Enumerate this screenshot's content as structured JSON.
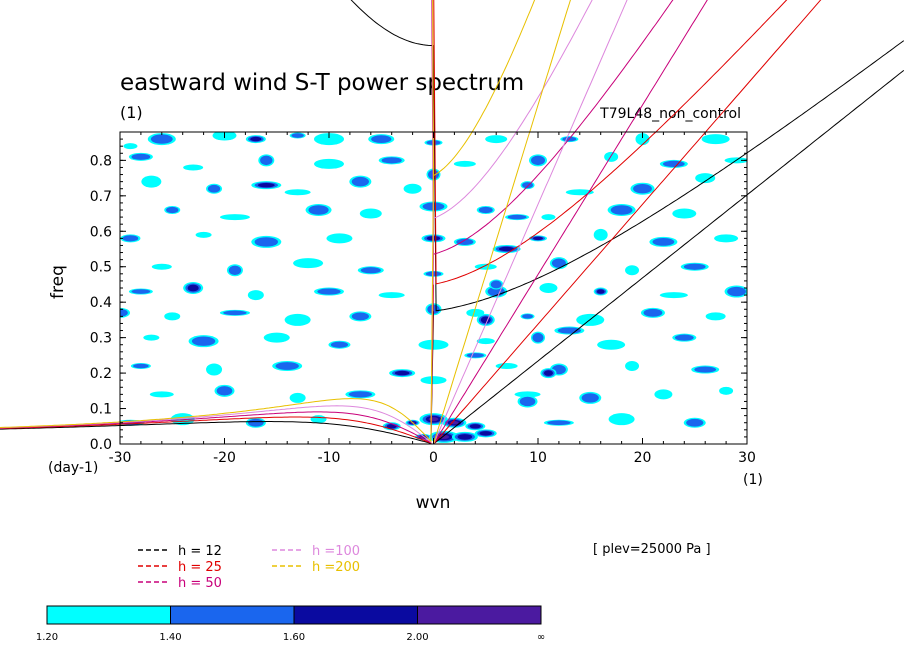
{
  "chart_data": {
    "type": "heatmap",
    "title": "eastward wind S-T power spectrum",
    "units_left": "(1)",
    "run_label": "T79L48_non_control",
    "xlabel": "wvn",
    "ylabel": "freq",
    "x_units": "(1)",
    "y_units": "(day-1)",
    "xlim": [
      -30,
      30
    ],
    "ylim": [
      0,
      0.88
    ],
    "xticks": [
      "-30",
      "-20",
      "-10",
      "0",
      "10",
      "20",
      "30"
    ],
    "xtick_values": [
      -30,
      -20,
      -10,
      0,
      10,
      20,
      30
    ],
    "yticks": [
      "0.0",
      "0.1",
      "0.2",
      "0.3",
      "0.4",
      "0.5",
      "0.6",
      "0.7",
      "0.8"
    ],
    "ytick_values": [
      0,
      0.1,
      0.2,
      0.3,
      0.4,
      0.5,
      0.6,
      0.7,
      0.8
    ],
    "plev_label": "[ plev=25000 Pa ]",
    "dispersion_curves": [
      {
        "name": "h = 12",
        "h": 12,
        "color": "#000000"
      },
      {
        "name": "h = 25",
        "h": 25,
        "color": "#e00000"
      },
      {
        "name": "h = 50",
        "h": 50,
        "color": "#c8007a"
      },
      {
        "name": "h =100",
        "h": 100,
        "color": "#dd88dd"
      },
      {
        "name": "h =200",
        "h": 200,
        "color": "#e8c000"
      }
    ],
    "colorbar": {
      "levels": [
        "1.20",
        "1.40",
        "1.60",
        "2.00",
        "∞"
      ],
      "colors": [
        "#00ffff",
        "#1a66ee",
        "#0a0aa0",
        "#4b1aa0"
      ]
    },
    "blobs": [
      {
        "x": -29,
        "y": 0.84,
        "l": 1
      },
      {
        "x": -26,
        "y": 0.86,
        "l": 2
      },
      {
        "x": -20,
        "y": 0.87,
        "l": 1
      },
      {
        "x": -17,
        "y": 0.86,
        "l": 3
      },
      {
        "x": -13,
        "y": 0.87,
        "l": 2
      },
      {
        "x": -10,
        "y": 0.86,
        "l": 1
      },
      {
        "x": -5,
        "y": 0.86,
        "l": 2
      },
      {
        "x": 6,
        "y": 0.86,
        "l": 1
      },
      {
        "x": 13,
        "y": 0.86,
        "l": 2
      },
      {
        "x": 20,
        "y": 0.86,
        "l": 1
      },
      {
        "x": 27,
        "y": 0.86,
        "l": 1
      },
      {
        "x": -28,
        "y": 0.81,
        "l": 2
      },
      {
        "x": -23,
        "y": 0.78,
        "l": 1
      },
      {
        "x": -16,
        "y": 0.8,
        "l": 2
      },
      {
        "x": -10,
        "y": 0.79,
        "l": 1
      },
      {
        "x": -4,
        "y": 0.8,
        "l": 2
      },
      {
        "x": 3,
        "y": 0.79,
        "l": 1
      },
      {
        "x": 10,
        "y": 0.8,
        "l": 2
      },
      {
        "x": 17,
        "y": 0.81,
        "l": 1
      },
      {
        "x": 23,
        "y": 0.79,
        "l": 2
      },
      {
        "x": 29,
        "y": 0.8,
        "l": 1
      },
      {
        "x": -27,
        "y": 0.74,
        "l": 1
      },
      {
        "x": -21,
        "y": 0.72,
        "l": 2
      },
      {
        "x": -16,
        "y": 0.73,
        "l": 3
      },
      {
        "x": -13,
        "y": 0.71,
        "l": 1
      },
      {
        "x": -7,
        "y": 0.74,
        "l": 2
      },
      {
        "x": -2,
        "y": 0.72,
        "l": 1
      },
      {
        "x": 9,
        "y": 0.73,
        "l": 2
      },
      {
        "x": 14,
        "y": 0.71,
        "l": 1
      },
      {
        "x": 20,
        "y": 0.72,
        "l": 2
      },
      {
        "x": 26,
        "y": 0.75,
        "l": 1
      },
      {
        "x": -25,
        "y": 0.66,
        "l": 2
      },
      {
        "x": -19,
        "y": 0.64,
        "l": 1
      },
      {
        "x": -11,
        "y": 0.66,
        "l": 2
      },
      {
        "x": -6,
        "y": 0.65,
        "l": 1
      },
      {
        "x": 5,
        "y": 0.66,
        "l": 2
      },
      {
        "x": 11,
        "y": 0.64,
        "l": 1
      },
      {
        "x": 18,
        "y": 0.66,
        "l": 2
      },
      {
        "x": 24,
        "y": 0.65,
        "l": 1
      },
      {
        "x": -29,
        "y": 0.58,
        "l": 2
      },
      {
        "x": -22,
        "y": 0.59,
        "l": 1
      },
      {
        "x": -16,
        "y": 0.57,
        "l": 2
      },
      {
        "x": -9,
        "y": 0.58,
        "l": 1
      },
      {
        "x": 3,
        "y": 0.57,
        "l": 2
      },
      {
        "x": 10,
        "y": 0.58,
        "l": 3
      },
      {
        "x": 16,
        "y": 0.59,
        "l": 1
      },
      {
        "x": 22,
        "y": 0.57,
        "l": 2
      },
      {
        "x": 28,
        "y": 0.58,
        "l": 1
      },
      {
        "x": -26,
        "y": 0.5,
        "l": 1
      },
      {
        "x": -19,
        "y": 0.49,
        "l": 2
      },
      {
        "x": -12,
        "y": 0.51,
        "l": 1
      },
      {
        "x": -6,
        "y": 0.49,
        "l": 2
      },
      {
        "x": 5,
        "y": 0.5,
        "l": 1
      },
      {
        "x": 12,
        "y": 0.51,
        "l": 2
      },
      {
        "x": 19,
        "y": 0.49,
        "l": 1
      },
      {
        "x": 25,
        "y": 0.5,
        "l": 2
      },
      {
        "x": -28,
        "y": 0.43,
        "l": 2
      },
      {
        "x": -23,
        "y": 0.44,
        "l": 3
      },
      {
        "x": -17,
        "y": 0.42,
        "l": 1
      },
      {
        "x": -10,
        "y": 0.43,
        "l": 2
      },
      {
        "x": -4,
        "y": 0.42,
        "l": 1
      },
      {
        "x": 6,
        "y": 0.43,
        "l": 2
      },
      {
        "x": 11,
        "y": 0.44,
        "l": 1
      },
      {
        "x": 16,
        "y": 0.43,
        "l": 3
      },
      {
        "x": 23,
        "y": 0.42,
        "l": 1
      },
      {
        "x": 29,
        "y": 0.43,
        "l": 2
      },
      {
        "x": -30,
        "y": 0.37,
        "l": 2
      },
      {
        "x": -25,
        "y": 0.36,
        "l": 1
      },
      {
        "x": -19,
        "y": 0.37,
        "l": 2
      },
      {
        "x": -13,
        "y": 0.35,
        "l": 1
      },
      {
        "x": -7,
        "y": 0.36,
        "l": 2
      },
      {
        "x": 4,
        "y": 0.37,
        "l": 1
      },
      {
        "x": 9,
        "y": 0.36,
        "l": 2
      },
      {
        "x": 15,
        "y": 0.35,
        "l": 1
      },
      {
        "x": 21,
        "y": 0.37,
        "l": 2
      },
      {
        "x": 27,
        "y": 0.36,
        "l": 1
      },
      {
        "x": -27,
        "y": 0.3,
        "l": 1
      },
      {
        "x": -22,
        "y": 0.29,
        "l": 2
      },
      {
        "x": -15,
        "y": 0.3,
        "l": 1
      },
      {
        "x": -9,
        "y": 0.28,
        "l": 2
      },
      {
        "x": 5,
        "y": 0.29,
        "l": 1
      },
      {
        "x": 10,
        "y": 0.3,
        "l": 2
      },
      {
        "x": 17,
        "y": 0.28,
        "l": 1
      },
      {
        "x": 24,
        "y": 0.3,
        "l": 2
      },
      {
        "x": -28,
        "y": 0.22,
        "l": 2
      },
      {
        "x": -21,
        "y": 0.21,
        "l": 1
      },
      {
        "x": -14,
        "y": 0.22,
        "l": 2
      },
      {
        "x": -3,
        "y": 0.2,
        "l": 3
      },
      {
        "x": 7,
        "y": 0.22,
        "l": 1
      },
      {
        "x": 12,
        "y": 0.21,
        "l": 2
      },
      {
        "x": 19,
        "y": 0.22,
        "l": 1
      },
      {
        "x": 26,
        "y": 0.21,
        "l": 2
      },
      {
        "x": -26,
        "y": 0.14,
        "l": 1
      },
      {
        "x": -20,
        "y": 0.15,
        "l": 2
      },
      {
        "x": -13,
        "y": 0.13,
        "l": 1
      },
      {
        "x": -7,
        "y": 0.14,
        "l": 2
      },
      {
        "x": 9,
        "y": 0.14,
        "l": 1
      },
      {
        "x": 15,
        "y": 0.13,
        "l": 2
      },
      {
        "x": 22,
        "y": 0.14,
        "l": 1
      },
      {
        "x": 28,
        "y": 0.15,
        "l": 1
      },
      {
        "x": -29,
        "y": 0.06,
        "l": 2
      },
      {
        "x": -24,
        "y": 0.07,
        "l": 1
      },
      {
        "x": -17,
        "y": 0.06,
        "l": 2
      },
      {
        "x": -11,
        "y": 0.07,
        "l": 1
      },
      {
        "x": 12,
        "y": 0.06,
        "l": 2
      },
      {
        "x": 18,
        "y": 0.07,
        "l": 1
      },
      {
        "x": 25,
        "y": 0.06,
        "l": 2
      },
      {
        "x": -4,
        "y": 0.05,
        "l": 3
      },
      {
        "x": -2,
        "y": 0.06,
        "l": 4
      },
      {
        "x": 0,
        "y": 0.07,
        "l": 4
      },
      {
        "x": 2,
        "y": 0.06,
        "l": 4
      },
      {
        "x": 4,
        "y": 0.05,
        "l": 3
      },
      {
        "x": -1,
        "y": 0.02,
        "l": 4
      },
      {
        "x": 1,
        "y": 0.02,
        "l": 4
      },
      {
        "x": 3,
        "y": 0.02,
        "l": 3
      },
      {
        "x": 5,
        "y": 0.03,
        "l": 3
      },
      {
        "x": 0,
        "y": 0.85,
        "l": 2
      },
      {
        "x": 0,
        "y": 0.76,
        "l": 2
      },
      {
        "x": 0,
        "y": 0.67,
        "l": 2
      },
      {
        "x": 0,
        "y": 0.58,
        "l": 3
      },
      {
        "x": 0,
        "y": 0.48,
        "l": 2
      },
      {
        "x": 0,
        "y": 0.38,
        "l": 2
      },
      {
        "x": 0,
        "y": 0.28,
        "l": 1
      },
      {
        "x": 0,
        "y": 0.18,
        "l": 1
      },
      {
        "x": 4,
        "y": 0.25,
        "l": 2
      },
      {
        "x": 5,
        "y": 0.35,
        "l": 3
      },
      {
        "x": 6,
        "y": 0.45,
        "l": 2
      },
      {
        "x": 7,
        "y": 0.55,
        "l": 3
      },
      {
        "x": 8,
        "y": 0.64,
        "l": 2
      },
      {
        "x": 9,
        "y": 0.12,
        "l": 2
      },
      {
        "x": 11,
        "y": 0.2,
        "l": 3
      },
      {
        "x": 13,
        "y": 0.32,
        "l": 2
      }
    ]
  }
}
